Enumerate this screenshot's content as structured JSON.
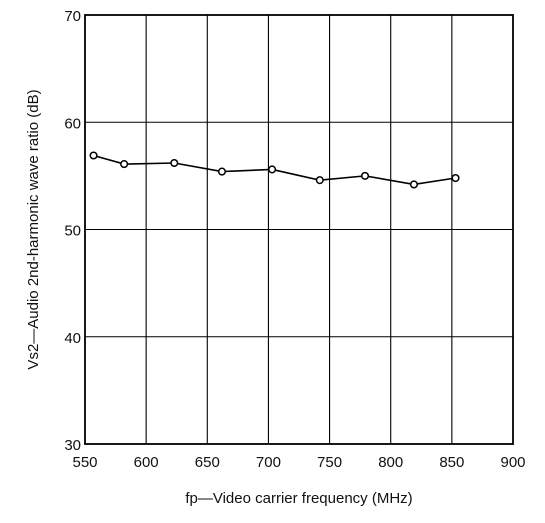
{
  "chart_data": {
    "type": "line",
    "title": "",
    "xlabel": "fp—Video carrier frequency (MHz)",
    "ylabel": "Vs2—Audio 2nd-harmonic wave ratio (dB)",
    "xlim": [
      550,
      900
    ],
    "ylim": [
      30,
      70
    ],
    "x_ticks": [
      550,
      600,
      650,
      700,
      750,
      800,
      850,
      900
    ],
    "y_ticks": [
      30,
      40,
      50,
      60,
      70
    ],
    "grid": true,
    "series": [
      {
        "x": [
          557,
          582,
          623,
          662,
          703,
          742,
          779,
          819,
          853
        ],
        "values": [
          56.9,
          56.1,
          56.2,
          55.4,
          55.6,
          54.6,
          55.0,
          54.2,
          54.8
        ],
        "marker": "open-circle",
        "color": "#000000"
      }
    ]
  }
}
